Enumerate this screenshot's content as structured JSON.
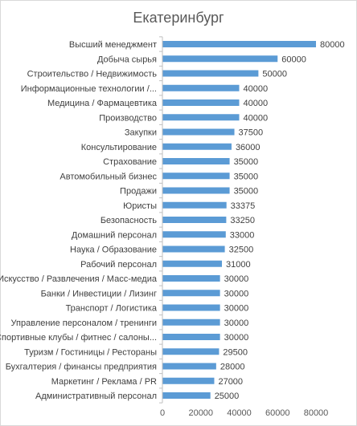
{
  "chart_data": {
    "type": "bar",
    "orientation": "horizontal",
    "title": "Екатеринбург",
    "categories": [
      "Высший менеджмент",
      "Добыча сырья",
      "Строительство / Недвижимость",
      "Информационные технологии /...",
      "Медицина / Фармацевтика",
      "Производство",
      "Закупки",
      "Консультирование",
      "Страхование",
      "Автомобильный бизнес",
      "Продажи",
      "Юристы",
      "Безопасность",
      "Домашний персонал",
      "Наука / Образование",
      "Рабочий персонал",
      "Искусство / Развлечения / Масс-медиа",
      "Банки / Инвестиции / Лизинг",
      "Транспорт / Логистика",
      "Управление персоналом / тренинги",
      "Спортивные клубы / фитнес / салоны...",
      "Туризм / Гостиницы / Рестораны",
      "Бухгалтерия / финансы предприятия",
      "Маркетинг / Реклама / PR",
      "Административный персонал"
    ],
    "values": [
      80000,
      60000,
      50000,
      40000,
      40000,
      40000,
      37500,
      36000,
      35000,
      35000,
      35000,
      33375,
      33250,
      33000,
      32500,
      31000,
      30000,
      30000,
      30000,
      30000,
      30000,
      29500,
      28000,
      27000,
      25000
    ],
    "xlim": [
      0,
      80000
    ],
    "xticks": [
      "0",
      "20000",
      "40000",
      "60000",
      "80000"
    ],
    "xtick_values": [
      0,
      20000,
      40000,
      60000,
      80000
    ],
    "bar_color": "#5b9bd5",
    "grid": false,
    "legend": "none"
  }
}
